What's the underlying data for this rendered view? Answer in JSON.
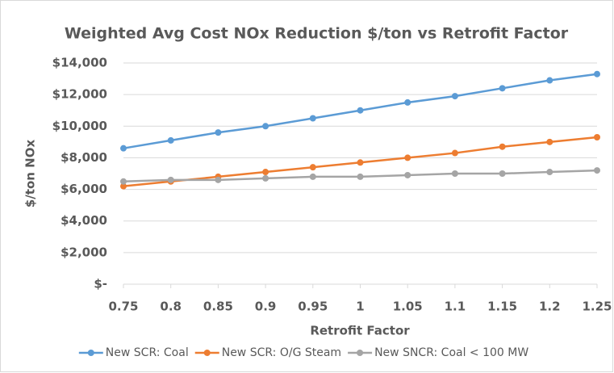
{
  "chart_data": {
    "type": "line",
    "title": "Weighted Avg Cost NOx Reduction $/ton vs Retrofit Factor",
    "x_label": "Retrofit Factor",
    "y_label": "$/ton NOx",
    "x": [
      0.75,
      0.8,
      0.85,
      0.9,
      0.95,
      1,
      1.05,
      1.1,
      1.15,
      1.2,
      1.25
    ],
    "xlim": [
      0.75,
      1.25
    ],
    "xticks": [
      0.75,
      0.8,
      0.85,
      0.9,
      0.95,
      1,
      1.05,
      1.1,
      1.15,
      1.2,
      1.25
    ],
    "ylim": [
      0,
      14000
    ],
    "yticks": [
      {
        "value": 0,
        "label": "$-"
      },
      {
        "value": 2000,
        "label": "$2,000"
      },
      {
        "value": 4000,
        "label": "$4,000"
      },
      {
        "value": 6000,
        "label": "$6,000"
      },
      {
        "value": 8000,
        "label": "$8,000"
      },
      {
        "value": 10000,
        "label": "$10,000"
      },
      {
        "value": 12000,
        "label": "$12,000"
      },
      {
        "value": 14000,
        "label": "$14,000"
      }
    ],
    "grid": true,
    "legend": "bottom",
    "series": [
      {
        "name": "New SCR: Coal",
        "color": "#5b9bd5",
        "values": [
          8600,
          9100,
          9600,
          10000,
          10500,
          11000,
          11500,
          11900,
          12400,
          12900,
          13300
        ]
      },
      {
        "name": "New SCR: O/G Steam",
        "color": "#ed7d31",
        "values": [
          6200,
          6500,
          6800,
          7100,
          7400,
          7700,
          8000,
          8300,
          8700,
          9000,
          9300
        ]
      },
      {
        "name": "New SNCR: Coal < 100 MW",
        "color": "#a5a5a5",
        "values": [
          6500,
          6600,
          6600,
          6700,
          6800,
          6800,
          6900,
          7000,
          7000,
          7100,
          7200
        ]
      }
    ]
  }
}
